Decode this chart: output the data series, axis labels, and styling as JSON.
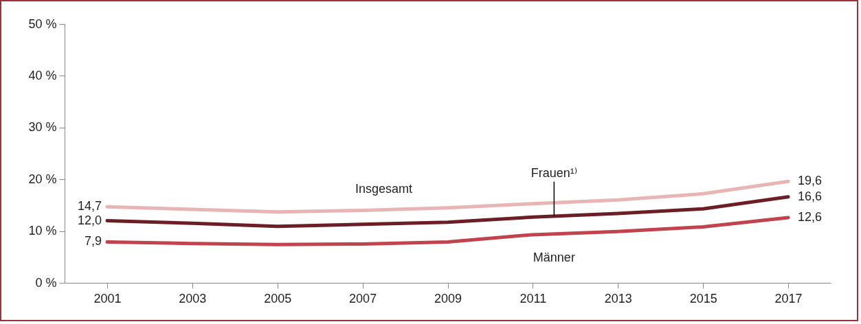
{
  "chart_data": {
    "type": "line",
    "x": [
      2001,
      2003,
      2005,
      2007,
      2009,
      2011,
      2013,
      2015,
      2017
    ],
    "xlim": [
      2000,
      2018
    ],
    "xticks": [
      2001,
      2003,
      2005,
      2007,
      2009,
      2011,
      2013,
      2015,
      2017
    ],
    "ylim": [
      0,
      50
    ],
    "yticks": [
      {
        "value": 0,
        "label": "0 %"
      },
      {
        "value": 10,
        "label": "10 %"
      },
      {
        "value": 20,
        "label": "20 %"
      },
      {
        "value": 30,
        "label": "30 %"
      },
      {
        "value": 40,
        "label": "40 %"
      },
      {
        "value": 50,
        "label": "50 %"
      }
    ],
    "grid": false,
    "legend": false,
    "marker": "none",
    "line_style": "solid",
    "series": [
      {
        "name": "Insgesamt",
        "color": "#e8b4b4",
        "values": [
          14.7,
          14.2,
          13.7,
          14.0,
          14.5,
          15.3,
          16.0,
          17.2,
          19.6
        ],
        "value_labels": [
          "14,7",
          null,
          null,
          null,
          null,
          null,
          null,
          null,
          "19,6"
        ]
      },
      {
        "name": "Frauen¹⁾",
        "color": "#6b1f24",
        "values": [
          12.0,
          11.5,
          10.9,
          11.3,
          11.7,
          12.7,
          13.4,
          14.3,
          16.6
        ],
        "value_labels": [
          "12,0",
          null,
          null,
          null,
          null,
          null,
          null,
          null,
          "16,6"
        ]
      },
      {
        "name": "Männer",
        "color": "#c0434d",
        "values": [
          7.9,
          7.6,
          7.4,
          7.5,
          7.9,
          9.3,
          9.9,
          10.8,
          12.6
        ],
        "value_labels": [
          "7,9",
          null,
          null,
          null,
          null,
          null,
          null,
          null,
          "12,6"
        ]
      }
    ]
  }
}
